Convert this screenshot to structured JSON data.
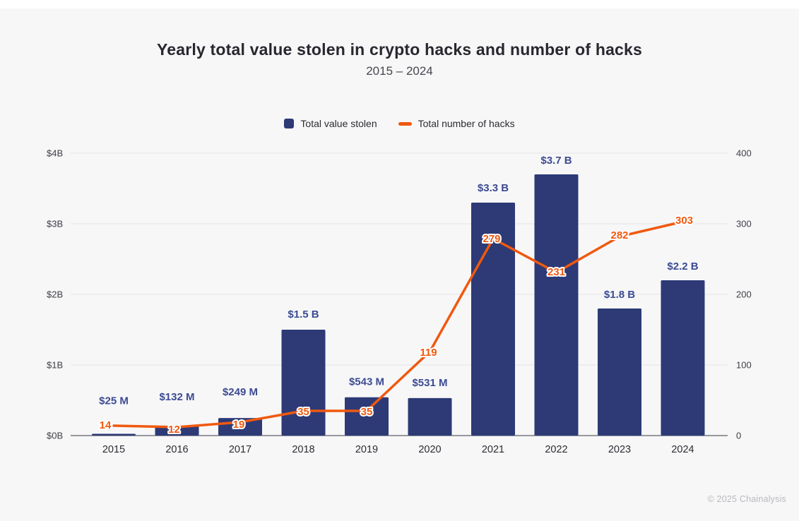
{
  "header": {
    "title": "Yearly total value stolen in crypto hacks and number of hacks",
    "subtitle": "2015 – 2024"
  },
  "legend": [
    {
      "label": "Total value stolen",
      "color": "#2d3a76",
      "marker": "square"
    },
    {
      "label": "Total number of hacks",
      "color": "#f0590f",
      "marker": "line"
    }
  ],
  "footer": {
    "credit": "© 2025 Chainalysis"
  },
  "colors": {
    "panel_background": "#f7f7f8",
    "bar": "#2d3a76",
    "bar_value_label": "#3c4b92",
    "line": "#f0590f",
    "gridline": "#e4e4e8",
    "baseline": "#98989e",
    "axis_text": "#3e3e45",
    "year_text": "#2c2c33"
  },
  "chart_data": {
    "type": "bar+line",
    "title": "Yearly total value stolen in crypto hacks and number of hacks",
    "subtitle": "2015 – 2024",
    "categories": [
      "2015",
      "2016",
      "2017",
      "2018",
      "2019",
      "2020",
      "2021",
      "2022",
      "2023",
      "2024"
    ],
    "series": [
      {
        "name": "Total value stolen",
        "type": "bar",
        "axis": "left",
        "unit": "USD",
        "values_usd_billions": [
          0.025,
          0.132,
          0.249,
          1.5,
          0.543,
          0.531,
          3.3,
          3.7,
          1.8,
          2.2
        ],
        "labels": [
          "$25 M",
          "$132 M",
          "$249 M",
          "$1.5 B",
          "$543 M",
          "$531 M",
          "$3.3 B",
          "$3.7 B",
          "$1.8 B",
          "$2.2 B"
        ],
        "color": "#2d3a76",
        "label_color": "#3c4b92"
      },
      {
        "name": "Total number of hacks",
        "type": "line",
        "axis": "right",
        "values": [
          14,
          12,
          19,
          35,
          35,
          119,
          279,
          231,
          282,
          303
        ],
        "color": "#f0590f"
      }
    ],
    "left_axis": {
      "ticks": [
        "$0B",
        "$1B",
        "$2B",
        "$3B",
        "$4B"
      ],
      "range_billions": [
        0,
        4
      ]
    },
    "right_axis": {
      "ticks": [
        "0",
        "100",
        "200",
        "300",
        "400"
      ],
      "range": [
        0,
        400
      ]
    },
    "grid": "horizontal",
    "legend_position": "top-center"
  }
}
